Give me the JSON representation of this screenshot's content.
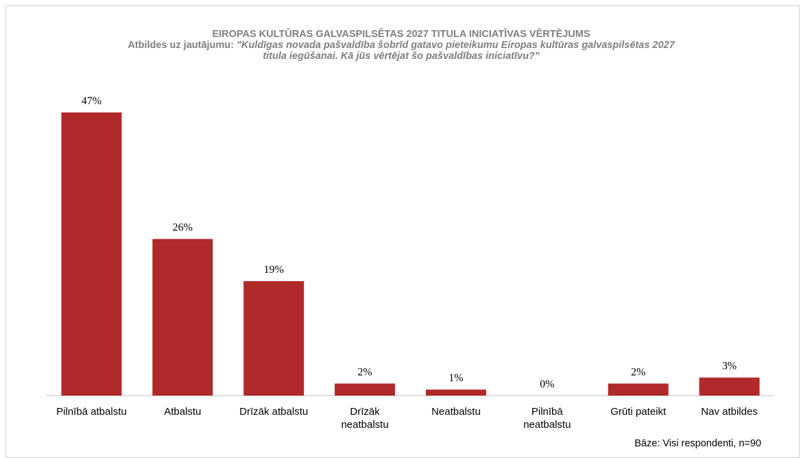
{
  "chart_data": {
    "type": "bar",
    "title": "EIROPAS KULTŪRAS GALVASPILSĒTAS 2027 TITULA INICIATĪVAS VĒRTĒJUMS",
    "subtitle_prefix": "Atbildes uz jautājumu:",
    "subtitle": "\"Kuldīgas novada pašvaldība šobrīd gatavo pieteikumu Eiropas kultūras galvaspilsētas 2027 titula iegūšanai. Kā jūs vērtējat šo pašvaldības iniciatīvu?\"",
    "categories": [
      "Pilnībā atbalstu",
      "Atbalstu",
      "Drīzāk atbalstu",
      "Drīzāk neatbalstu",
      "Neatbalstu",
      "Pilnībā neatbalstu",
      "Grūti pateikt",
      "Nav atbildes"
    ],
    "values": [
      47,
      26,
      19,
      2,
      1,
      0,
      2,
      3
    ],
    "value_labels": [
      "47%",
      "26%",
      "19%",
      "2%",
      "1%",
      "0%",
      "2%",
      "3%"
    ],
    "color": "#b0292b",
    "note": "Bāze: Visi respondenti, n=90"
  }
}
